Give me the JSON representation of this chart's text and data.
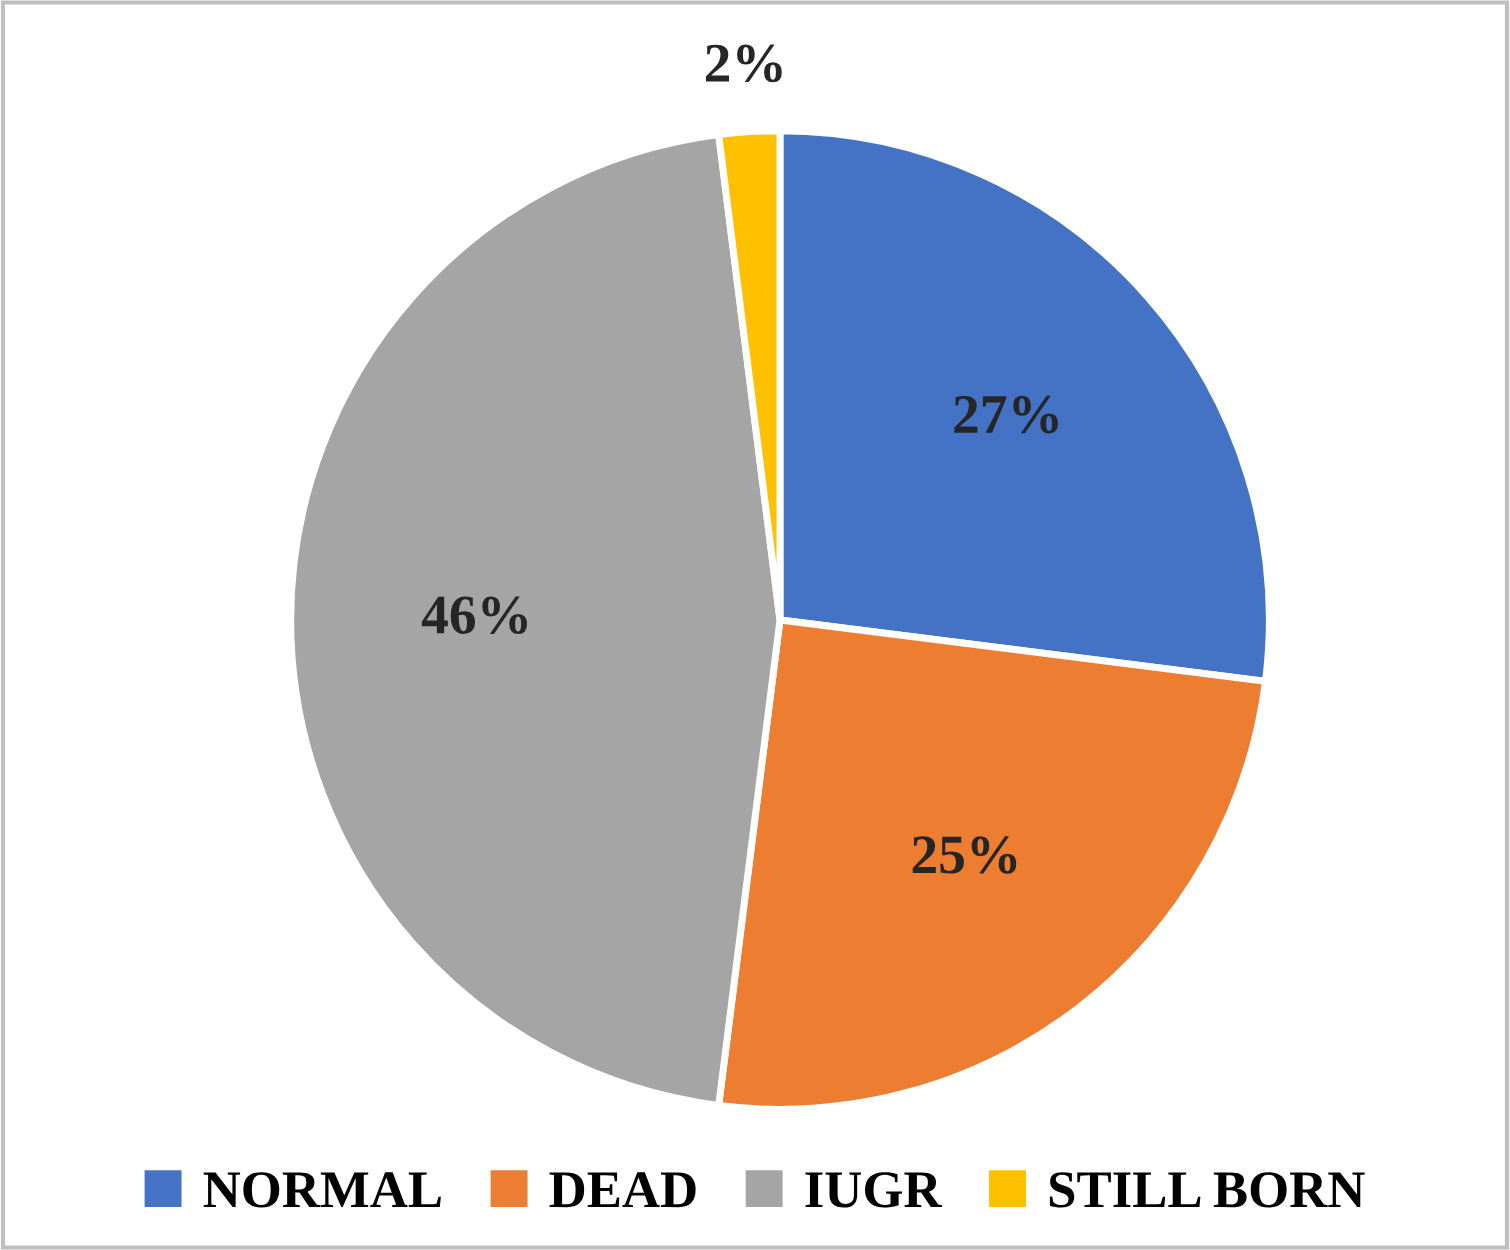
{
  "chart_data": {
    "type": "pie",
    "categories": [
      "NORMAL",
      "DEAD",
      "IUGR",
      "STILL BORN"
    ],
    "values": [
      27,
      25,
      46,
      2
    ],
    "colors": [
      "#4472c4",
      "#ed7d31",
      "#a5a5a5",
      "#ffc000"
    ],
    "value_labels": [
      "27%",
      "25%",
      "46%",
      "2%"
    ],
    "legend": "bottom"
  }
}
